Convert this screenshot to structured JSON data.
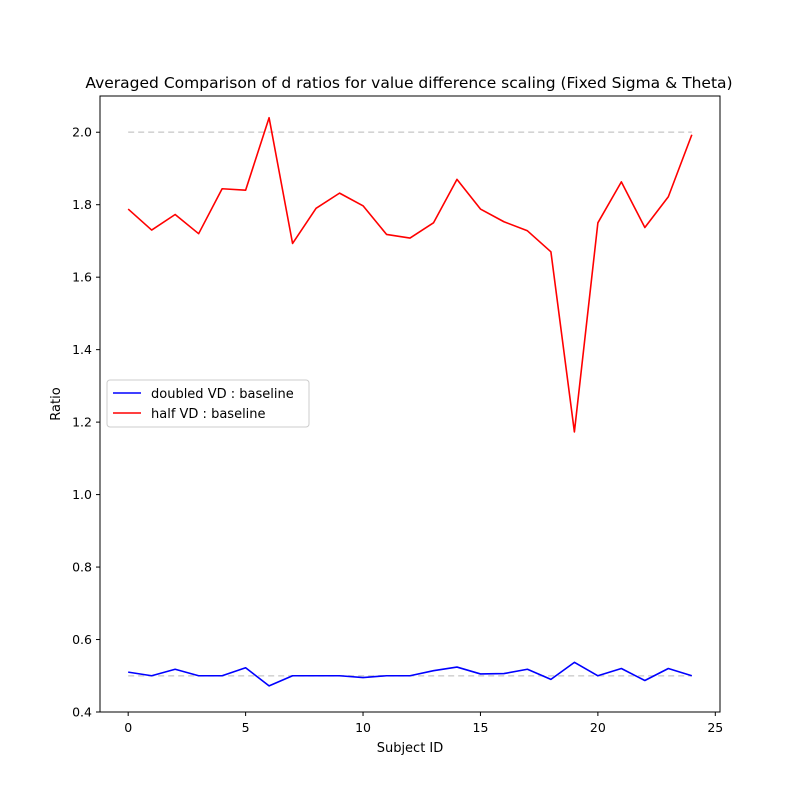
{
  "chart_data": {
    "type": "line",
    "title": "Averaged Comparison of d ratios for value difference scaling (Fixed Sigma & Theta)",
    "xlabel": "Subject ID",
    "ylabel": "Ratio",
    "xlim": [
      -1.2,
      25.2
    ],
    "ylim": [
      0.4,
      2.1
    ],
    "xticks": [
      0,
      5,
      10,
      15,
      20,
      25
    ],
    "yticks": [
      0.4,
      0.6,
      0.8,
      1.0,
      1.2,
      1.4,
      1.6,
      1.8,
      2.0
    ],
    "ytick_labels": [
      "0.4",
      "0.6",
      "0.8",
      "1.0",
      "1.2",
      "1.4",
      "1.6",
      "1.8",
      "2.0"
    ],
    "grid": false,
    "legend_position": "center-left",
    "x": [
      0,
      1,
      2,
      3,
      4,
      5,
      6,
      7,
      8,
      9,
      10,
      11,
      12,
      13,
      14,
      15,
      16,
      17,
      18,
      19,
      20,
      21,
      22,
      23,
      24
    ],
    "series": [
      {
        "name": "doubled VD : baseline",
        "color": "#0000ff",
        "values": [
          0.51,
          0.5,
          0.518,
          0.5,
          0.5,
          0.522,
          0.472,
          0.5,
          0.5,
          0.5,
          0.495,
          0.5,
          0.5,
          0.514,
          0.524,
          0.505,
          0.506,
          0.518,
          0.49,
          0.537,
          0.5,
          0.52,
          0.487,
          0.52,
          0.5
        ]
      },
      {
        "name": "half VD : baseline",
        "color": "#ff0000",
        "values": [
          1.788,
          1.73,
          1.773,
          1.72,
          1.844,
          1.84,
          2.04,
          1.693,
          1.79,
          1.832,
          1.797,
          1.718,
          1.708,
          1.75,
          1.87,
          1.788,
          1.753,
          1.728,
          1.67,
          1.173,
          1.75,
          1.863,
          1.737,
          1.822,
          1.993
        ]
      }
    ],
    "reference_lines": [
      {
        "y": 2.0,
        "color": "#d3d3d3",
        "style": "dashed"
      },
      {
        "y": 0.5,
        "color": "#d3d3d3",
        "style": "dashed"
      }
    ]
  }
}
